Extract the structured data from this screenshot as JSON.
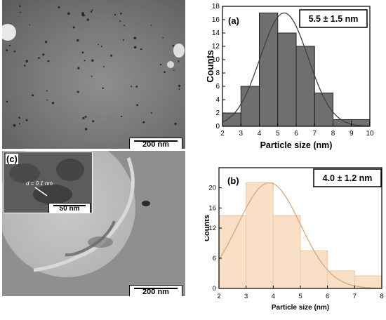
{
  "images": {
    "top": {
      "scale_label": "200 nm"
    },
    "bottom": {
      "panel_label": "(c)",
      "scale_label": "200 nm"
    },
    "inset": {
      "scale_label": "50 nm",
      "annotation": "d = 0.1 nm"
    }
  },
  "chart_data": [
    {
      "type": "bar",
      "panel_label": "(a)",
      "stat_label": "5.5 ± 1.5 nm",
      "xlabel": "Particle size (nm)",
      "ylabel": "Counts",
      "bin_edges": [
        2,
        3,
        4,
        5,
        6,
        7,
        8,
        9,
        10
      ],
      "values": [
        2,
        6,
        17,
        14,
        12,
        5,
        1,
        1
      ],
      "xlim": [
        2,
        10
      ],
      "ylim": [
        0,
        18
      ],
      "xticks": [
        2,
        3,
        4,
        5,
        6,
        7,
        8,
        9,
        10
      ],
      "yticks": [
        0,
        2,
        4,
        6,
        8,
        10,
        12,
        14,
        16,
        18
      ],
      "fit": {
        "type": "gaussian",
        "mean": 5.35,
        "sigma": 1.3,
        "peak": 17
      },
      "bar_color": "#6f6f6f",
      "fit_color": "#404040"
    },
    {
      "type": "bar",
      "panel_label": "(b)",
      "stat_label": "4.0 ± 1.2 nm",
      "xlabel": "Particle size (nm)",
      "ylabel": "Counts",
      "bin_edges": [
        2,
        3,
        4,
        5,
        6,
        7,
        8
      ],
      "values": [
        14.5,
        21,
        14.5,
        7.5,
        3.5,
        2.5
      ],
      "xlim": [
        2,
        8
      ],
      "ylim": [
        0,
        24
      ],
      "xticks": [
        2,
        3,
        4,
        5,
        6,
        7,
        8
      ],
      "yticks": [
        0,
        6,
        12,
        16,
        20
      ],
      "fit": {
        "type": "gaussian",
        "mean": 3.85,
        "sigma": 1.15,
        "peak": 21
      },
      "bar_color": "#f9dfc6",
      "fit_color": "#d9a77a"
    }
  ]
}
